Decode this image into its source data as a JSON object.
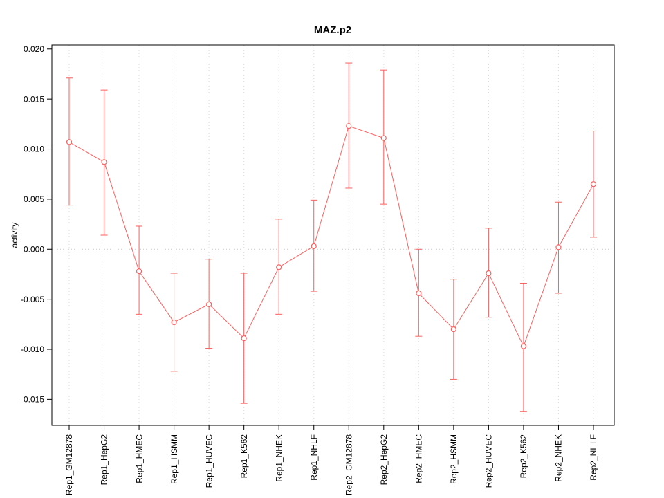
{
  "chart_data": {
    "type": "line",
    "title": "MAZ.p2",
    "xlabel": "",
    "ylabel": "activity",
    "ylim": [
      -0.0176,
      0.0204
    ],
    "yticks": [
      -0.015,
      -0.01,
      -0.005,
      0.0,
      0.005,
      0.01,
      0.015,
      0.02
    ],
    "grid": "vertical-dotted-per-category-plus-zero-line",
    "legend": "none",
    "marker": "open-circle",
    "categories": [
      "Rep1_GM12878",
      "Rep1_HepG2",
      "Rep1_HMEC",
      "Rep1_HSMM",
      "Rep1_HUVEC",
      "Rep1_K562",
      "Rep1_NHEK",
      "Rep1_NHLF",
      "Rep2_GM12878",
      "Rep2_HepG2",
      "Rep2_HMEC",
      "Rep2_HSMM",
      "Rep2_HUVEC",
      "Rep2_K562",
      "Rep2_NHEK",
      "Rep2_NHLF"
    ],
    "values": [
      0.0107,
      0.0087,
      -0.0022,
      -0.0073,
      -0.0055,
      -0.0089,
      -0.0018,
      0.0003,
      0.0123,
      0.0111,
      -0.0044,
      -0.008,
      -0.0024,
      -0.0097,
      0.0002,
      0.0065
    ],
    "error_low": [
      0.0044,
      0.0014,
      -0.0065,
      -0.0122,
      -0.0099,
      -0.0154,
      -0.0065,
      -0.0042,
      0.0061,
      0.0045,
      -0.0087,
      -0.013,
      -0.0068,
      -0.0162,
      -0.0044,
      0.0012
    ],
    "error_high": [
      0.0171,
      0.0159,
      0.0023,
      -0.0024,
      -0.001,
      -0.0024,
      0.003,
      0.0049,
      0.0186,
      0.0179,
      0.0,
      -0.003,
      0.0021,
      -0.0034,
      0.0047,
      0.0118
    ]
  },
  "colors": {
    "series": "#FA5F5F",
    "grid": "#DCDCDC",
    "zero_line": "#C8C8C8",
    "axis": "#000000",
    "background": "#FFFFFF"
  }
}
